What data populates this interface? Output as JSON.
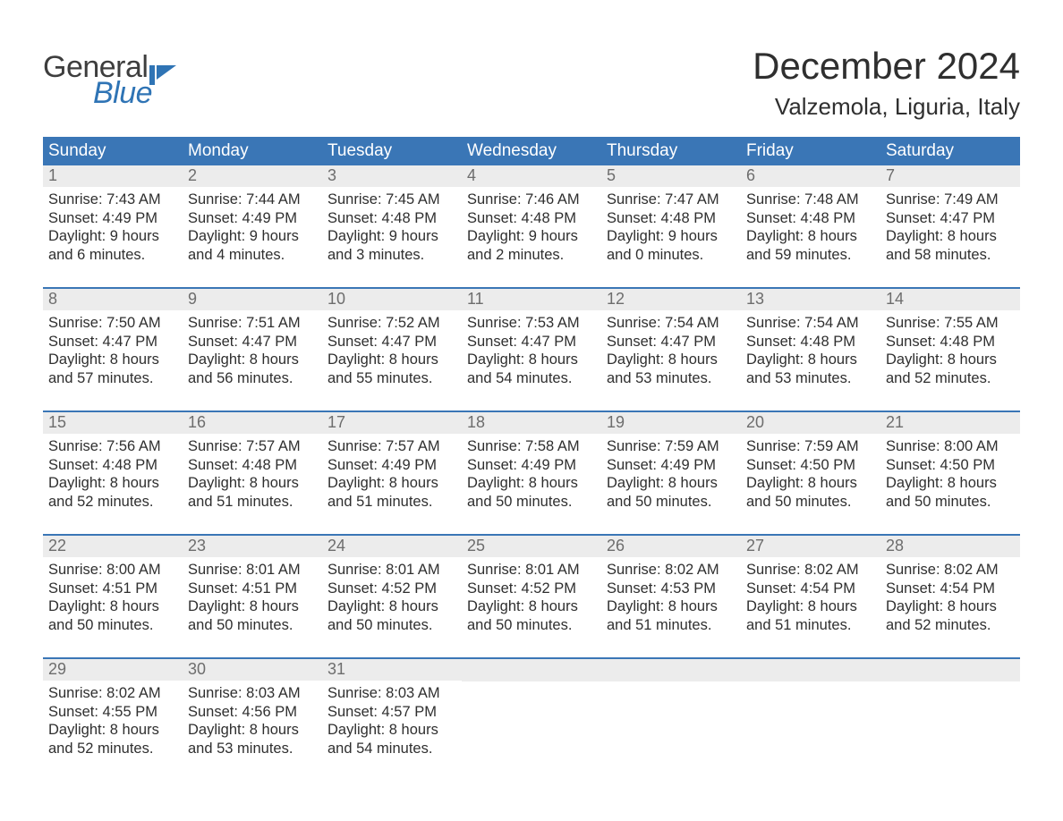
{
  "brand": {
    "text1": "General",
    "text2": "Blue",
    "accent_color": "#2f74b5",
    "text_color": "#3e3e3e"
  },
  "title": {
    "month": "December 2024",
    "location": "Valzemola, Liguria, Italy"
  },
  "colors": {
    "header_bg": "#3a76b6",
    "header_text": "#ffffff",
    "week_border": "#3a76b6",
    "daynum_bg": "#ececec",
    "daynum_text": "#6d6d6d",
    "body_text": "#2f2f2f",
    "page_bg": "#ffffff"
  },
  "typography": {
    "font_family": "Arial, Helvetica, sans-serif",
    "month_title_fontsize": 42,
    "location_fontsize": 26,
    "dow_fontsize": 19,
    "daynum_fontsize": 18,
    "body_fontsize": 16.5
  },
  "calendar": {
    "type": "table",
    "day_names": [
      "Sunday",
      "Monday",
      "Tuesday",
      "Wednesday",
      "Thursday",
      "Friday",
      "Saturday"
    ],
    "weeks": [
      [
        {
          "num": "1",
          "sunrise": "Sunrise: 7:43 AM",
          "sunset": "Sunset: 4:49 PM",
          "day1": "Daylight: 9 hours",
          "day2": "and 6 minutes."
        },
        {
          "num": "2",
          "sunrise": "Sunrise: 7:44 AM",
          "sunset": "Sunset: 4:49 PM",
          "day1": "Daylight: 9 hours",
          "day2": "and 4 minutes."
        },
        {
          "num": "3",
          "sunrise": "Sunrise: 7:45 AM",
          "sunset": "Sunset: 4:48 PM",
          "day1": "Daylight: 9 hours",
          "day2": "and 3 minutes."
        },
        {
          "num": "4",
          "sunrise": "Sunrise: 7:46 AM",
          "sunset": "Sunset: 4:48 PM",
          "day1": "Daylight: 9 hours",
          "day2": "and 2 minutes."
        },
        {
          "num": "5",
          "sunrise": "Sunrise: 7:47 AM",
          "sunset": "Sunset: 4:48 PM",
          "day1": "Daylight: 9 hours",
          "day2": "and 0 minutes."
        },
        {
          "num": "6",
          "sunrise": "Sunrise: 7:48 AM",
          "sunset": "Sunset: 4:48 PM",
          "day1": "Daylight: 8 hours",
          "day2": "and 59 minutes."
        },
        {
          "num": "7",
          "sunrise": "Sunrise: 7:49 AM",
          "sunset": "Sunset: 4:47 PM",
          "day1": "Daylight: 8 hours",
          "day2": "and 58 minutes."
        }
      ],
      [
        {
          "num": "8",
          "sunrise": "Sunrise: 7:50 AM",
          "sunset": "Sunset: 4:47 PM",
          "day1": "Daylight: 8 hours",
          "day2": "and 57 minutes."
        },
        {
          "num": "9",
          "sunrise": "Sunrise: 7:51 AM",
          "sunset": "Sunset: 4:47 PM",
          "day1": "Daylight: 8 hours",
          "day2": "and 56 minutes."
        },
        {
          "num": "10",
          "sunrise": "Sunrise: 7:52 AM",
          "sunset": "Sunset: 4:47 PM",
          "day1": "Daylight: 8 hours",
          "day2": "and 55 minutes."
        },
        {
          "num": "11",
          "sunrise": "Sunrise: 7:53 AM",
          "sunset": "Sunset: 4:47 PM",
          "day1": "Daylight: 8 hours",
          "day2": "and 54 minutes."
        },
        {
          "num": "12",
          "sunrise": "Sunrise: 7:54 AM",
          "sunset": "Sunset: 4:47 PM",
          "day1": "Daylight: 8 hours",
          "day2": "and 53 minutes."
        },
        {
          "num": "13",
          "sunrise": "Sunrise: 7:54 AM",
          "sunset": "Sunset: 4:48 PM",
          "day1": "Daylight: 8 hours",
          "day2": "and 53 minutes."
        },
        {
          "num": "14",
          "sunrise": "Sunrise: 7:55 AM",
          "sunset": "Sunset: 4:48 PM",
          "day1": "Daylight: 8 hours",
          "day2": "and 52 minutes."
        }
      ],
      [
        {
          "num": "15",
          "sunrise": "Sunrise: 7:56 AM",
          "sunset": "Sunset: 4:48 PM",
          "day1": "Daylight: 8 hours",
          "day2": "and 52 minutes."
        },
        {
          "num": "16",
          "sunrise": "Sunrise: 7:57 AM",
          "sunset": "Sunset: 4:48 PM",
          "day1": "Daylight: 8 hours",
          "day2": "and 51 minutes."
        },
        {
          "num": "17",
          "sunrise": "Sunrise: 7:57 AM",
          "sunset": "Sunset: 4:49 PM",
          "day1": "Daylight: 8 hours",
          "day2": "and 51 minutes."
        },
        {
          "num": "18",
          "sunrise": "Sunrise: 7:58 AM",
          "sunset": "Sunset: 4:49 PM",
          "day1": "Daylight: 8 hours",
          "day2": "and 50 minutes."
        },
        {
          "num": "19",
          "sunrise": "Sunrise: 7:59 AM",
          "sunset": "Sunset: 4:49 PM",
          "day1": "Daylight: 8 hours",
          "day2": "and 50 minutes."
        },
        {
          "num": "20",
          "sunrise": "Sunrise: 7:59 AM",
          "sunset": "Sunset: 4:50 PM",
          "day1": "Daylight: 8 hours",
          "day2": "and 50 minutes."
        },
        {
          "num": "21",
          "sunrise": "Sunrise: 8:00 AM",
          "sunset": "Sunset: 4:50 PM",
          "day1": "Daylight: 8 hours",
          "day2": "and 50 minutes."
        }
      ],
      [
        {
          "num": "22",
          "sunrise": "Sunrise: 8:00 AM",
          "sunset": "Sunset: 4:51 PM",
          "day1": "Daylight: 8 hours",
          "day2": "and 50 minutes."
        },
        {
          "num": "23",
          "sunrise": "Sunrise: 8:01 AM",
          "sunset": "Sunset: 4:51 PM",
          "day1": "Daylight: 8 hours",
          "day2": "and 50 minutes."
        },
        {
          "num": "24",
          "sunrise": "Sunrise: 8:01 AM",
          "sunset": "Sunset: 4:52 PM",
          "day1": "Daylight: 8 hours",
          "day2": "and 50 minutes."
        },
        {
          "num": "25",
          "sunrise": "Sunrise: 8:01 AM",
          "sunset": "Sunset: 4:52 PM",
          "day1": "Daylight: 8 hours",
          "day2": "and 50 minutes."
        },
        {
          "num": "26",
          "sunrise": "Sunrise: 8:02 AM",
          "sunset": "Sunset: 4:53 PM",
          "day1": "Daylight: 8 hours",
          "day2": "and 51 minutes."
        },
        {
          "num": "27",
          "sunrise": "Sunrise: 8:02 AM",
          "sunset": "Sunset: 4:54 PM",
          "day1": "Daylight: 8 hours",
          "day2": "and 51 minutes."
        },
        {
          "num": "28",
          "sunrise": "Sunrise: 8:02 AM",
          "sunset": "Sunset: 4:54 PM",
          "day1": "Daylight: 8 hours",
          "day2": "and 52 minutes."
        }
      ],
      [
        {
          "num": "29",
          "sunrise": "Sunrise: 8:02 AM",
          "sunset": "Sunset: 4:55 PM",
          "day1": "Daylight: 8 hours",
          "day2": "and 52 minutes."
        },
        {
          "num": "30",
          "sunrise": "Sunrise: 8:03 AM",
          "sunset": "Sunset: 4:56 PM",
          "day1": "Daylight: 8 hours",
          "day2": "and 53 minutes."
        },
        {
          "num": "31",
          "sunrise": "Sunrise: 8:03 AM",
          "sunset": "Sunset: 4:57 PM",
          "day1": "Daylight: 8 hours",
          "day2": "and 54 minutes."
        },
        null,
        null,
        null,
        null
      ]
    ]
  }
}
